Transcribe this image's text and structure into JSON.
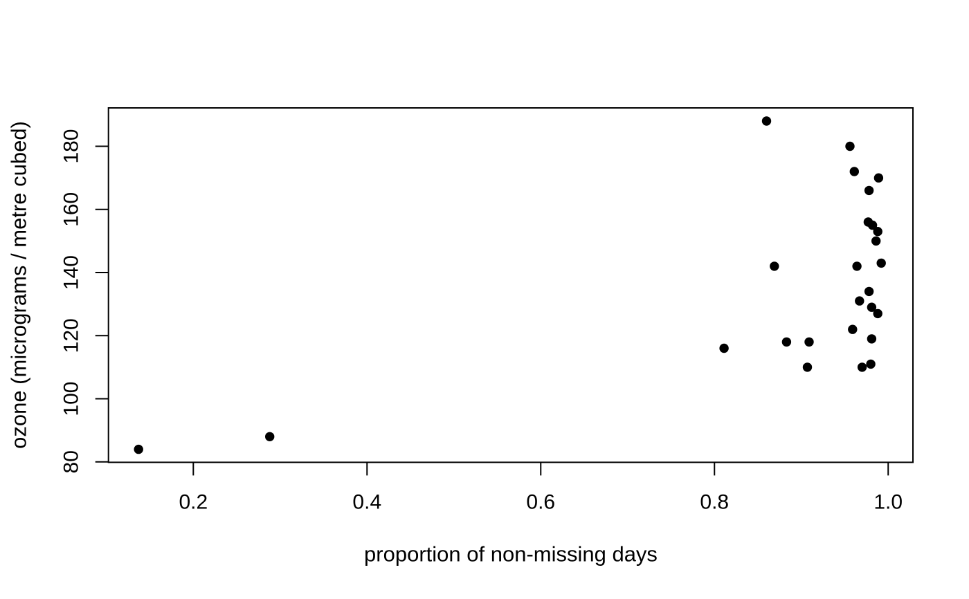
{
  "figure": {
    "background": "#ffffff",
    "foreground": "#000000"
  },
  "chart_data": {
    "type": "scatter",
    "title": "",
    "xlabel": "proportion of non-missing days",
    "ylabel": "ozone (micrograms / metre cubed)",
    "xlim": [
      0.1023,
      1.0285
    ],
    "ylim": [
      79.87,
      192.17
    ],
    "grid": false,
    "legend": null,
    "x_ticks": {
      "values": [
        0.2,
        0.4,
        0.6,
        0.8,
        1.0
      ],
      "labels": [
        "0.2",
        "0.4",
        "0.6",
        "0.8",
        "1.0"
      ]
    },
    "y_ticks": {
      "values": [
        80,
        100,
        120,
        140,
        160,
        180
      ],
      "labels": [
        "80",
        "100",
        "120",
        "140",
        "160",
        "180"
      ]
    },
    "marker": {
      "shape": "filled-circle",
      "color": "#000000",
      "radius_px": 6.7
    },
    "points": [
      [
        0.137,
        84
      ],
      [
        0.288,
        88
      ],
      [
        0.811,
        116
      ],
      [
        0.86,
        188
      ],
      [
        0.869,
        142
      ],
      [
        0.883,
        118
      ],
      [
        0.909,
        118
      ],
      [
        0.907,
        110
      ],
      [
        0.956,
        180
      ],
      [
        0.961,
        172
      ],
      [
        0.989,
        170
      ],
      [
        0.978,
        166
      ],
      [
        0.977,
        156
      ],
      [
        0.982,
        155
      ],
      [
        0.988,
        153
      ],
      [
        0.986,
        150
      ],
      [
        0.964,
        142
      ],
      [
        0.992,
        143
      ],
      [
        0.978,
        134
      ],
      [
        0.967,
        131
      ],
      [
        0.981,
        129
      ],
      [
        0.988,
        127
      ],
      [
        0.959,
        122
      ],
      [
        0.981,
        119
      ],
      [
        0.97,
        110
      ],
      [
        0.98,
        111
      ]
    ]
  }
}
